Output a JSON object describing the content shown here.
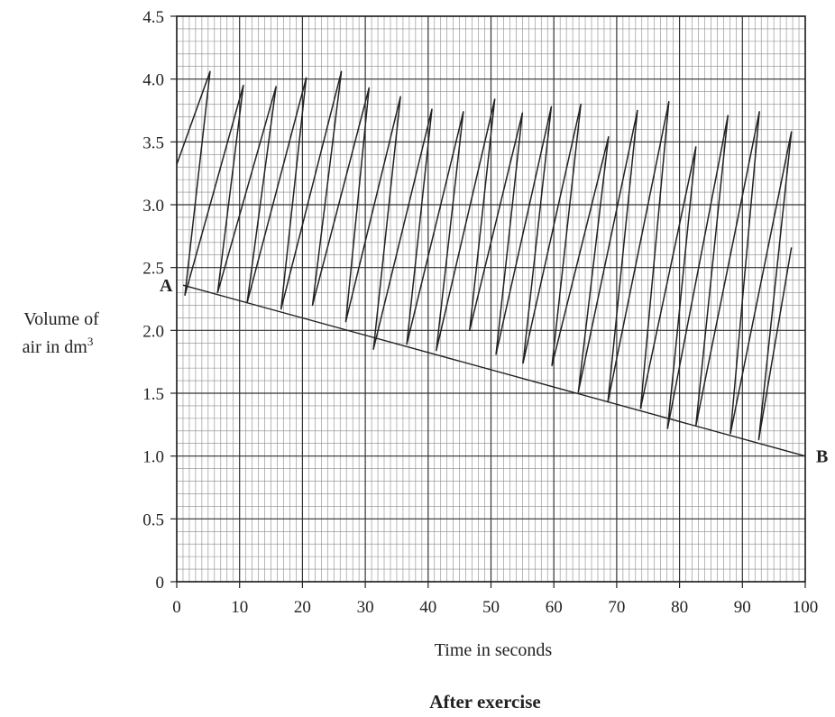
{
  "chart_data": {
    "type": "line",
    "title": "After exercise",
    "xlabel": "Time in seconds",
    "ylabel_line1": "Volume of",
    "ylabel_line2": "air in dm",
    "ylabel_sup": "3",
    "xlim": [
      0,
      100
    ],
    "ylim": [
      0,
      4.5
    ],
    "x_ticks": [
      0,
      10,
      20,
      30,
      40,
      50,
      60,
      70,
      80,
      90,
      100
    ],
    "x_tick_labels": [
      "0",
      "10",
      "20",
      "30",
      "40",
      "50",
      "60",
      "70",
      "80",
      "90",
      "100"
    ],
    "y_ticks": [
      0,
      0.5,
      1.0,
      1.5,
      2.0,
      2.5,
      3.0,
      3.5,
      4.0,
      4.5
    ],
    "y_tick_labels": [
      "0",
      "0.5",
      "1.0",
      "1.5",
      "2.0",
      "2.5",
      "3.0",
      "3.5",
      "4.0",
      "4.5"
    ],
    "grid": true,
    "grid_minor_x": 1,
    "grid_minor_y": 0.1,
    "series": [
      {
        "values": [
          [
            0.0,
            3.32
          ],
          [
            5.3,
            4.06
          ],
          [
            1.3,
            2.28
          ],
          [
            10.6,
            3.95
          ],
          [
            6.5,
            2.3
          ],
          [
            15.8,
            3.94
          ],
          [
            11.2,
            2.22
          ],
          [
            20.6,
            4.01
          ],
          [
            16.6,
            2.17
          ],
          [
            26.2,
            4.06
          ],
          [
            21.6,
            2.2
          ],
          [
            30.6,
            3.93
          ],
          [
            26.9,
            2.07
          ],
          [
            35.6,
            3.86
          ],
          [
            31.3,
            1.85
          ],
          [
            40.6,
            3.76
          ],
          [
            36.6,
            1.89
          ],
          [
            45.6,
            3.74
          ],
          [
            41.3,
            1.84
          ],
          [
            50.6,
            3.84
          ],
          [
            46.6,
            2.0
          ],
          [
            55.0,
            3.73
          ],
          [
            50.8,
            1.81
          ],
          [
            59.6,
            3.78
          ],
          [
            55.1,
            1.74
          ],
          [
            64.3,
            3.8
          ],
          [
            59.7,
            1.72
          ],
          [
            68.7,
            3.54
          ],
          [
            63.9,
            1.51
          ],
          [
            73.3,
            3.75
          ],
          [
            68.6,
            1.43
          ],
          [
            78.3,
            3.82
          ],
          [
            73.8,
            1.38
          ],
          [
            82.6,
            3.46
          ],
          [
            78.1,
            1.22
          ],
          [
            87.7,
            3.71
          ],
          [
            82.6,
            1.24
          ],
          [
            92.7,
            3.74
          ],
          [
            88.1,
            1.18
          ],
          [
            97.8,
            3.58
          ],
          [
            92.6,
            1.13
          ],
          [
            97.8,
            2.66
          ]
        ]
      }
    ],
    "trend_line": {
      "points": [
        [
          1.0,
          2.36
        ],
        [
          100.0,
          1.0
        ]
      ],
      "start_label": "A",
      "end_label": "B"
    }
  }
}
